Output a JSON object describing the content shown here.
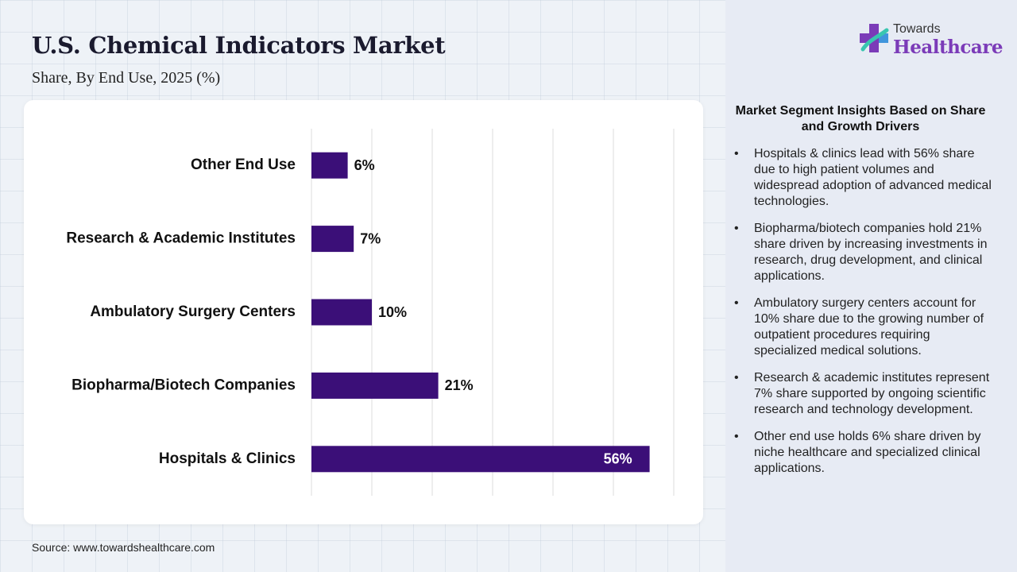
{
  "header": {
    "title": "U.S. Chemical Indicators Market",
    "subtitle": "Share, By End Use, 2025 (%)"
  },
  "logo": {
    "line1": "Towards",
    "line2": "Healthcare",
    "icon": "medical-cross-icon",
    "colors": {
      "purple": "#7b3bb8",
      "blue": "#3aa0e0",
      "teal": "#39c6b0"
    }
  },
  "source": "Source: www.towardshealthcare.com",
  "chart_data": {
    "type": "bar",
    "orientation": "horizontal",
    "categories": [
      "Other End Use",
      "Research & Academic Institutes",
      "Ambulatory Surgery Centers",
      "Biopharma/Biotech Companies",
      "Hospitals & Clinics"
    ],
    "values": [
      6,
      7,
      10,
      21,
      56
    ],
    "value_labels": [
      "6%",
      "7%",
      "10%",
      "21%",
      "56%"
    ],
    "xlim": [
      0,
      60
    ],
    "grid": true,
    "bar_color": "#3b0f78",
    "title": "",
    "xlabel": "",
    "ylabel": ""
  },
  "insights": {
    "title": "Market Segment Insights Based on Share and Growth Drivers",
    "bullet": "•",
    "items": [
      "Hospitals & clinics lead with 56% share due to high patient volumes and widespread adoption of advanced medical technologies.",
      "Biopharma/biotech companies hold 21% share driven by increasing investments in research, drug development, and clinical applications.",
      "Ambulatory surgery centers account for 10% share due to the growing number of outpatient procedures requiring specialized medical solutions.",
      "Research & academic institutes represent 7% share supported by ongoing scientific research and technology development.",
      "Other end use holds 6% share driven by niche healthcare and specialized clinical applications."
    ]
  }
}
